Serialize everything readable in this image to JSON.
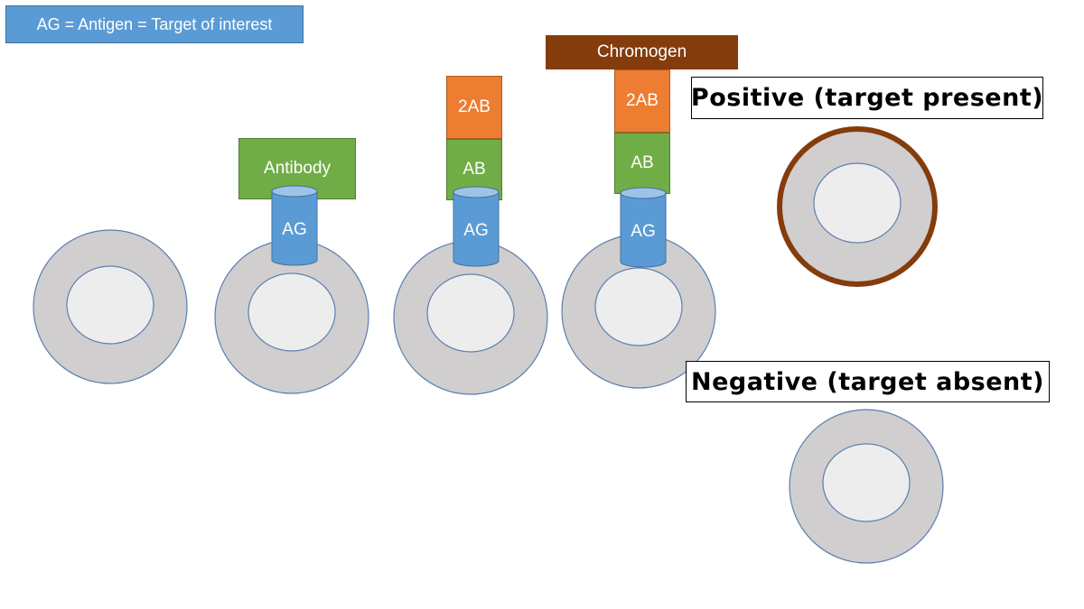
{
  "legend": {
    "text": "AG = Antigen = Target of interest"
  },
  "stage1": {
    "antibody_label": "Antibody",
    "antigen_label": "AG"
  },
  "stage2": {
    "secondary_label": "2AB",
    "primary_label": "AB",
    "antigen_label": "AG"
  },
  "stage3": {
    "chromogen_label": "Chromogen",
    "secondary_label": "2AB",
    "primary_label": "AB",
    "antigen_label": "AG"
  },
  "results": {
    "positive_label": "Positive (target present)",
    "negative_label": "Negative (target absent)"
  },
  "colors": {
    "cell_fill": "#d0cece",
    "nucleus_fill": "#ededed",
    "cell_outline": "#5b7fb0",
    "antigen": "#5b9bd5",
    "antibody": "#70ad47",
    "secondary_antibody": "#ed7d31",
    "chromogen": "#843c0c"
  }
}
